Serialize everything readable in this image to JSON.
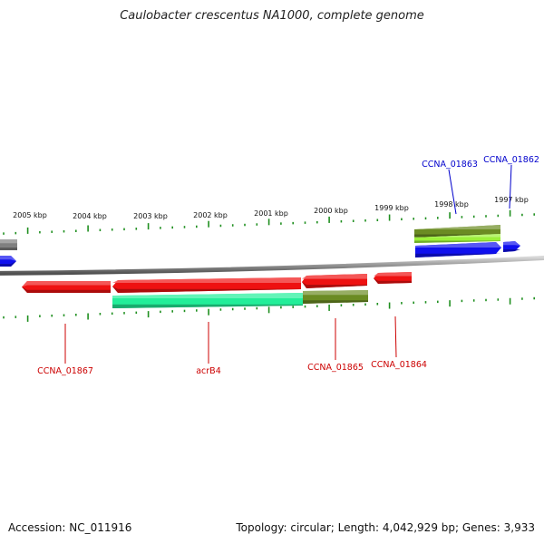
{
  "title": "Caulobacter crescentus NA1000, complete genome",
  "footer": {
    "accession": "Accession: NC_011916",
    "summary": "Topology: circular; Length: 4,042,929 bp; Genes: 3,933"
  },
  "colors": {
    "backbone": "#7f7f7f",
    "tick": "#1f8f1f",
    "red": "#ee1111",
    "blue": "#1010ee",
    "green": "#22ee99",
    "olive": "#6b8b23",
    "lime": "#9cf03a",
    "gray": "#808080",
    "label_red": "#cc0000",
    "label_blue": "#0000cc"
  },
  "kbp_labels": [
    "2005 kbp",
    "2004 kbp",
    "2003 kbp",
    "2002 kbp",
    "2001 kbp",
    "2000 kbp",
    "1999 kbp",
    "1998 kbp",
    "1997 kbp"
  ],
  "gene_labels": [
    {
      "text": "CCNA_01867",
      "color": "label_red"
    },
    {
      "text": "acrB4",
      "color": "label_red"
    },
    {
      "text": "CCNA_01865",
      "color": "label_red"
    },
    {
      "text": "CCNA_01864",
      "color": "label_red"
    },
    {
      "text": "CCNA_01863",
      "color": "label_blue"
    },
    {
      "text": "CCNA_01862",
      "color": "label_blue"
    }
  ],
  "features": [
    {
      "name": "gray-feature-left",
      "color": "gray"
    },
    {
      "name": "blue-feature-left",
      "color": "blue"
    },
    {
      "name": "red-gene-ccna-01867",
      "color": "red"
    },
    {
      "name": "red-gene-acrb4",
      "color": "red"
    },
    {
      "name": "green-feature-acrb4",
      "color": "green"
    },
    {
      "name": "red-gene-ccna-01865",
      "color": "red"
    },
    {
      "name": "olive-feature-ccna-01865",
      "color": "olive"
    },
    {
      "name": "red-gene-ccna-01864",
      "color": "red"
    },
    {
      "name": "olive-feature-ccna-01863",
      "color": "olive"
    },
    {
      "name": "lime-feature-ccna-01863",
      "color": "lime"
    },
    {
      "name": "blue-gene-ccna-01863",
      "color": "blue"
    },
    {
      "name": "blue-gene-ccna-01862",
      "color": "blue"
    }
  ]
}
